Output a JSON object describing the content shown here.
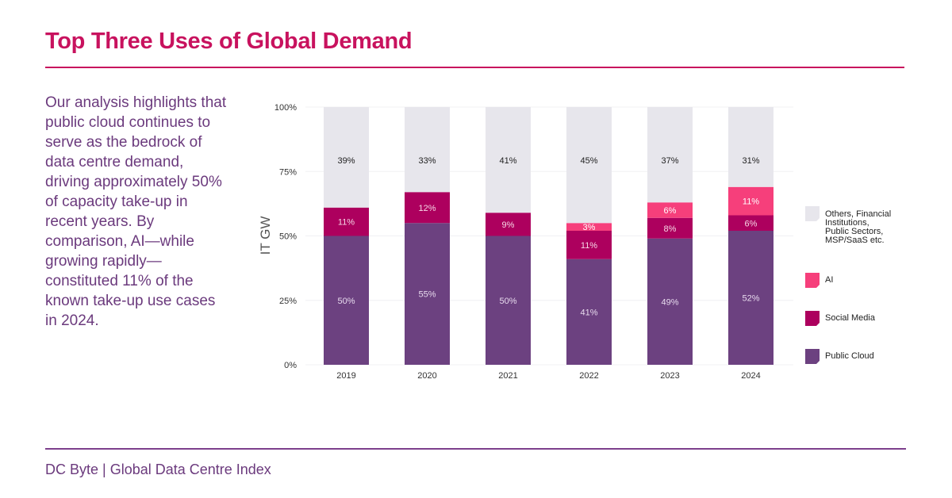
{
  "header": {
    "title": "Top Three Uses of Global Demand"
  },
  "description": "Our analysis highlights that public cloud continues to serve as the bedrock of data centre demand, driving approximately 50% of capacity take-up in recent years. By comparison, AI—while growing rapidly—constituted 11% of the known take-up use cases in 2024.",
  "footer": {
    "source": "DC Byte | Global Data Centre Index"
  },
  "chart_data": {
    "type": "bar",
    "stacked": true,
    "ylabel": "IT GW",
    "ylim": [
      0,
      100
    ],
    "yticks": [
      "0%",
      "25%",
      "50%",
      "75%",
      "100%"
    ],
    "grid": true,
    "legend_position": "right",
    "categories": [
      "2019",
      "2020",
      "2021",
      "2022",
      "2023",
      "2024"
    ],
    "series": [
      {
        "name": "Public Cloud",
        "color": "#6c4180",
        "label_color": "#e8dbee",
        "values": [
          50,
          55,
          50,
          41,
          49,
          52
        ]
      },
      {
        "name": "Social Media",
        "color": "#ad005e",
        "label_color": "#f6d7e6",
        "values": [
          11,
          12,
          9,
          11,
          8,
          6
        ]
      },
      {
        "name": "AI",
        "color": "#f63f7b",
        "label_color": "#ffffff",
        "values": [
          0,
          0,
          0,
          3,
          6,
          11
        ]
      },
      {
        "name": "Others, Financial Institutions, Public Sectors, MSP/SaaS etc.",
        "color": "#e7e6ec",
        "label_color": "#222222",
        "values": [
          39,
          33,
          41,
          45,
          37,
          31
        ]
      }
    ]
  }
}
